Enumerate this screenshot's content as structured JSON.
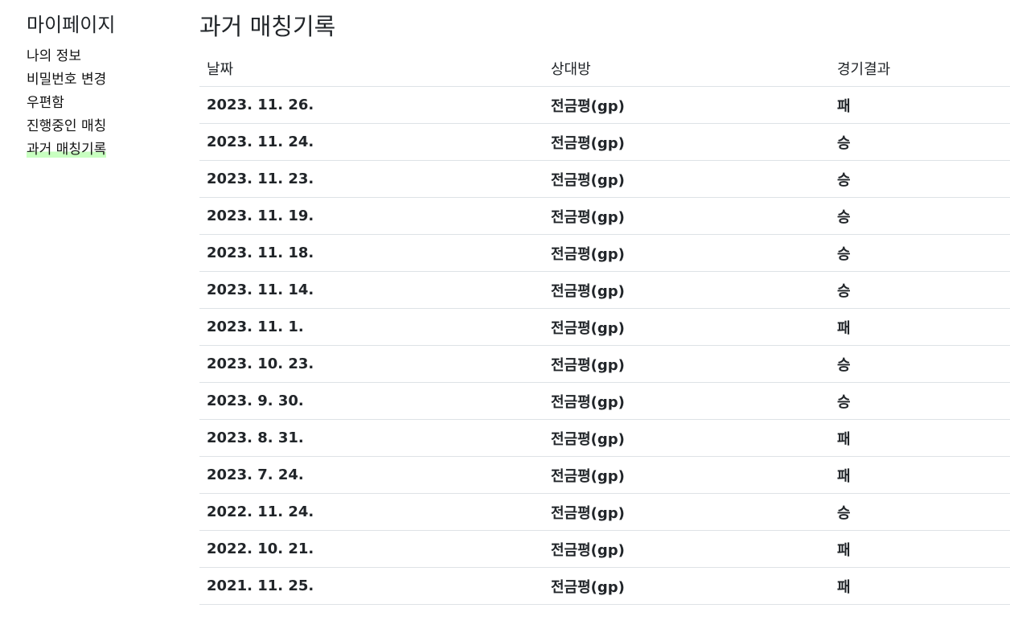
{
  "sidebar": {
    "title": "마이페이지",
    "items": [
      {
        "label": "나의 정보"
      },
      {
        "label": "비밀번호 변경"
      },
      {
        "label": "우편함"
      },
      {
        "label": "진행중인 매칭"
      },
      {
        "label": "과거 매칭기록",
        "active": true
      }
    ]
  },
  "main": {
    "title": "과거 매칭기록",
    "columns": [
      "날짜",
      "상대방",
      "경기결과"
    ],
    "rows": [
      {
        "date": "2023. 11. 26.",
        "opponent": "전금평(gp)",
        "result": "패"
      },
      {
        "date": "2023. 11. 24.",
        "opponent": "전금평(gp)",
        "result": "승"
      },
      {
        "date": "2023. 11. 23.",
        "opponent": "전금평(gp)",
        "result": "승"
      },
      {
        "date": "2023. 11. 19.",
        "opponent": "전금평(gp)",
        "result": "승"
      },
      {
        "date": "2023. 11. 18.",
        "opponent": "전금평(gp)",
        "result": "승"
      },
      {
        "date": "2023. 11. 14.",
        "opponent": "전금평(gp)",
        "result": "승"
      },
      {
        "date": "2023. 11. 1.",
        "opponent": "전금평(gp)",
        "result": "패"
      },
      {
        "date": "2023. 10. 23.",
        "opponent": "전금평(gp)",
        "result": "승"
      },
      {
        "date": "2023. 9. 30.",
        "opponent": "전금평(gp)",
        "result": "승"
      },
      {
        "date": "2023. 8. 31.",
        "opponent": "전금평(gp)",
        "result": "패"
      },
      {
        "date": "2023. 7. 24.",
        "opponent": "전금평(gp)",
        "result": "패"
      },
      {
        "date": "2022. 11. 24.",
        "opponent": "전금평(gp)",
        "result": "승"
      },
      {
        "date": "2022. 10. 21.",
        "opponent": "전금평(gp)",
        "result": "패"
      },
      {
        "date": "2021. 11. 25.",
        "opponent": "전금평(gp)",
        "result": "패"
      }
    ]
  },
  "colors": {
    "active_highlight": "#c8ffc0",
    "row_border": "#dee2e6"
  }
}
